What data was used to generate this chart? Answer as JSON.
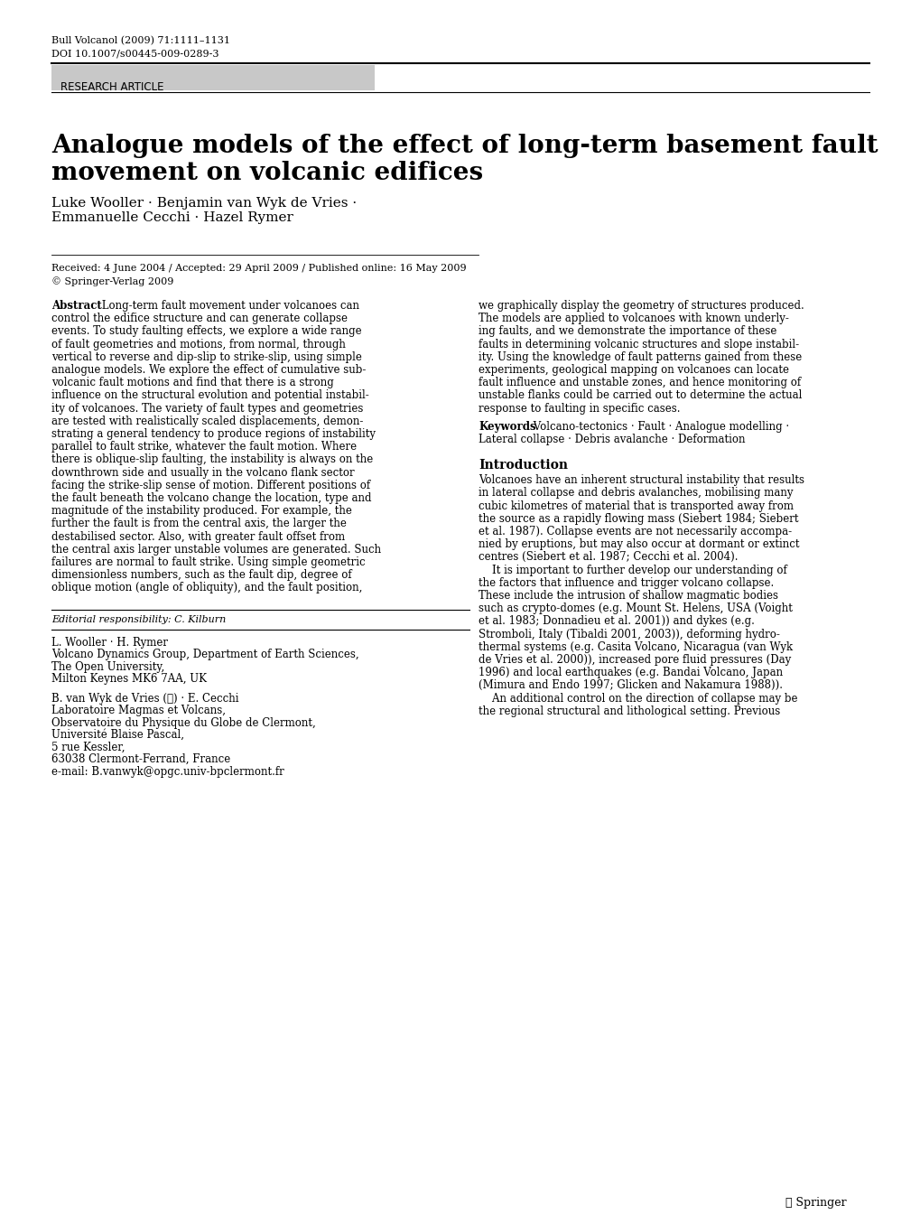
{
  "journal_line1": "Bull Volcanol (2009) 71:1111–1131",
  "journal_line2": "DOI 10.1007/s00445-009-0289-3",
  "research_article_label": "RESEARCH ARTICLE",
  "title_line1": "Analogue models of the effect of long-term basement fault",
  "title_line2": "movement on volcanic edifices",
  "authors_line1": "Luke Wooller · Benjamin van Wyk de Vries ·",
  "authors_line2": "Emmanuelle Cecchi · Hazel Rymer",
  "received_line": "Received: 4 June 2004 / Accepted: 29 April 2009 / Published online: 16 May 2009",
  "copyright_line": "© Springer-Verlag 2009",
  "editorial_label": "Editorial responsibility: C. Kilburn",
  "affil1_line1": "L. Wooller · H. Rymer",
  "affil1_line2": "Volcano Dynamics Group, Department of Earth Sciences,",
  "affil1_line3": "The Open University,",
  "affil1_line4": "Milton Keynes MK6 7AA, UK",
  "affil2_line1": "B. van Wyk de Vries (✉) · E. Cecchi",
  "affil2_line2": "Laboratoire Magmas et Volcans,",
  "affil2_line3": "Observatoire du Physique du Globe de Clermont,",
  "affil2_line4": "Université Blaise Pascal,",
  "affil2_line5": "5 rue Kessler,",
  "affil2_line6": "63038 Clermont-Ferrand, France",
  "affil2_line7": "e-mail: B.vanwyk@opgc.univ-bpclermont.fr",
  "springer_logo": "☉ Springer",
  "bg_color": "#ffffff",
  "research_box_color": "#c8c8c8",
  "left_col_lines": [
    "Long-term fault movement under volcanoes can",
    "control the edifice structure and can generate collapse",
    "events. To study faulting effects, we explore a wide range",
    "of fault geometries and motions, from normal, through",
    "vertical to reverse and dip-slip to strike-slip, using simple",
    "analogue models. We explore the effect of cumulative sub-",
    "volcanic fault motions and find that there is a strong",
    "influence on the structural evolution and potential instabil-",
    "ity of volcanoes. The variety of fault types and geometries",
    "are tested with realistically scaled displacements, demon-",
    "strating a general tendency to produce regions of instability",
    "parallel to fault strike, whatever the fault motion. Where",
    "there is oblique-slip faulting, the instability is always on the",
    "downthrown side and usually in the volcano flank sector",
    "facing the strike-slip sense of motion. Different positions of",
    "the fault beneath the volcano change the location, type and",
    "magnitude of the instability produced. For example, the",
    "further the fault is from the central axis, the larger the",
    "destabilised sector. Also, with greater fault offset from",
    "the central axis larger unstable volumes are generated. Such",
    "failures are normal to fault strike. Using simple geometric",
    "dimensionless numbers, such as the fault dip, degree of",
    "oblique motion (angle of obliquity), and the fault position,"
  ],
  "right_abstract_lines": [
    "we graphically display the geometry of structures produced.",
    "The models are applied to volcanoes with known underly-",
    "ing faults, and we demonstrate the importance of these",
    "faults in determining volcanic structures and slope instabil-",
    "ity. Using the knowledge of fault patterns gained from these",
    "experiments, geological mapping on volcanoes can locate",
    "fault influence and unstable zones, and hence monitoring of",
    "unstable flanks could be carried out to determine the actual",
    "response to faulting in specific cases."
  ],
  "keywords_line1": "Volcano-tectonics · Fault · Analogue modelling ·",
  "keywords_line2": "Lateral collapse · Debris avalanche · Deformation",
  "intro_lines": [
    "Volcanoes have an inherent structural instability that results",
    "in lateral collapse and debris avalanches, mobilising many",
    "cubic kilometres of material that is transported away from",
    "the source as a rapidly flowing mass (Siebert 1984; Siebert",
    "et al. 1987). Collapse events are not necessarily accompa-",
    "nied by eruptions, but may also occur at dormant or extinct",
    "centres (Siebert et al. 1987; Cecchi et al. 2004).",
    "    It is important to further develop our understanding of",
    "the factors that influence and trigger volcano collapse.",
    "These include the intrusion of shallow magmatic bodies",
    "such as crypto-domes (e.g. Mount St. Helens, USA (Voight",
    "et al. 1983; Donnadieu et al. 2001)) and dykes (e.g.",
    "Stromboli, Italy (Tibaldi 2001, 2003)), deforming hydro-",
    "thermal systems (e.g. Casita Volcano, Nicaragua (van Wyk",
    "de Vries et al. 2000)), increased pore fluid pressures (Day",
    "1996) and local earthquakes (e.g. Bandai Volcano, Japan",
    "(Mimura and Endo 1997; Glicken and Nakamura 1988)).",
    "    An additional control on the direction of collapse may be",
    "the regional structural and lithological setting. Previous"
  ]
}
